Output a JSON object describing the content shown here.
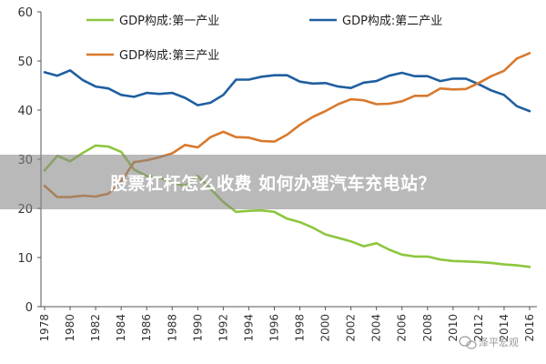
{
  "chart_data": {
    "type": "line",
    "x": [
      1978,
      1979,
      1980,
      1981,
      1982,
      1983,
      1984,
      1985,
      1986,
      1987,
      1988,
      1989,
      1990,
      1991,
      1992,
      1993,
      1994,
      1995,
      1996,
      1997,
      1998,
      1999,
      2000,
      2001,
      2002,
      2003,
      2004,
      2005,
      2006,
      2007,
      2008,
      2009,
      2010,
      2011,
      2012,
      2013,
      2014,
      2015,
      2016
    ],
    "x_ticks": [
      1978,
      1980,
      1982,
      1984,
      1986,
      1988,
      1990,
      1992,
      1994,
      1996,
      1998,
      2000,
      2002,
      2004,
      2006,
      2008,
      2010,
      2012,
      2014,
      2016
    ],
    "ylim": [
      0,
      60
    ],
    "y_ticks": [
      0,
      10,
      20,
      30,
      40,
      50,
      60
    ],
    "grid": false,
    "legend": [
      {
        "label": "GDP构成:第一产业",
        "series": 0
      },
      {
        "label": "GDP构成:第二产业",
        "series": 1
      },
      {
        "label": "GDP构成:第三产业",
        "series": 2
      }
    ],
    "series": [
      {
        "name": "GDP构成:第一产业",
        "color": "#8dc63f",
        "values": [
          27.7,
          30.7,
          29.6,
          31.3,
          32.8,
          32.6,
          31.5,
          27.9,
          26.6,
          26.3,
          25.2,
          24.6,
          26.6,
          24.0,
          21.3,
          19.3,
          19.5,
          19.6,
          19.3,
          17.9,
          17.2,
          16.1,
          14.7,
          14.0,
          13.3,
          12.3,
          12.9,
          11.6,
          10.6,
          10.2,
          10.2,
          9.6,
          9.3,
          9.2,
          9.1,
          8.9,
          8.6,
          8.4,
          8.1
        ]
      },
      {
        "name": "GDP构成:第二产业",
        "color": "#1f5fa0",
        "values": [
          47.7,
          47.0,
          48.1,
          46.1,
          44.8,
          44.4,
          43.1,
          42.7,
          43.5,
          43.3,
          43.5,
          42.5,
          41.0,
          41.5,
          43.1,
          46.2,
          46.2,
          46.8,
          47.1,
          47.1,
          45.8,
          45.4,
          45.5,
          44.8,
          44.5,
          45.6,
          45.9,
          47.0,
          47.6,
          46.9,
          46.9,
          45.9,
          46.4,
          46.4,
          45.3,
          44.0,
          43.1,
          40.8,
          39.8
        ]
      },
      {
        "name": "GDP构成:第三产业",
        "color": "#d8792d",
        "values": [
          24.6,
          22.3,
          22.3,
          22.6,
          22.4,
          23.0,
          25.5,
          29.4,
          29.8,
          30.4,
          31.2,
          32.9,
          32.4,
          34.5,
          35.6,
          34.5,
          34.4,
          33.7,
          33.6,
          35.0,
          37.0,
          38.6,
          39.8,
          41.2,
          42.2,
          42.0,
          41.2,
          41.3,
          41.8,
          42.9,
          42.9,
          44.4,
          44.2,
          44.3,
          45.5,
          46.9,
          48.0,
          50.5,
          51.6
        ]
      }
    ]
  },
  "overlay": {
    "banner_text": "股票杠杆怎么收费 如何办理汽车充电站？",
    "watermark_text": "泽平宏观"
  }
}
